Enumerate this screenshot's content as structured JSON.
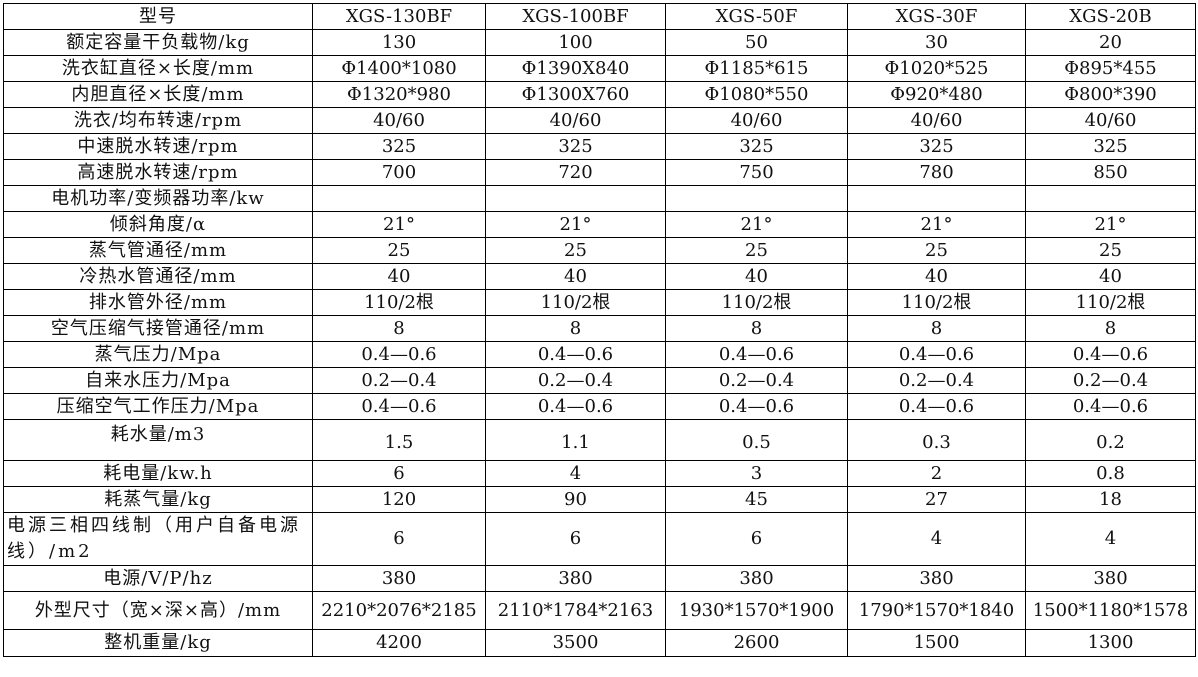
{
  "header": [
    "型号",
    "XGS-130BF",
    "XGS-100BF",
    "XGS-50F",
    "XGS-30F",
    "XGS-20B"
  ],
  "rows": [
    {
      "label": "额定容量干负载物/kg",
      "values": [
        "130",
        "100",
        "50",
        "30",
        "20"
      ]
    },
    {
      "label": "洗衣缸直径×长度/mm",
      "values": [
        "Φ1400*1080",
        "Φ1390X840",
        "Φ1185*615",
        "Φ1020*525",
        "Φ895*455"
      ]
    },
    {
      "label": "内胆直径×长度/mm",
      "values": [
        "Φ1320*980",
        "Φ1300X760",
        "Φ1080*550",
        "Φ920*480",
        "Φ800*390"
      ]
    },
    {
      "label": "洗衣/均布转速/rpm",
      "values": [
        "40/60",
        "40/60",
        "40/60",
        "40/60",
        "40/60"
      ]
    },
    {
      "label": "中速脱水转速/rpm",
      "values": [
        "325",
        "325",
        "325",
        "325",
        "325"
      ]
    },
    {
      "label": "高速脱水转速/rpm",
      "values": [
        "700",
        "720",
        "750",
        "780",
        "850"
      ]
    },
    {
      "label": "电机功率/变频器功率/kw",
      "values": [
        "",
        "",
        "",
        "",
        ""
      ]
    },
    {
      "label": "倾斜角度/α",
      "values": [
        "21°",
        "21°",
        "21°",
        "21°",
        "21°"
      ]
    },
    {
      "label": "蒸气管通径/mm",
      "values": [
        "25",
        "25",
        "25",
        "25",
        "25"
      ]
    },
    {
      "label": "冷热水管通径/mm",
      "values": [
        "40",
        "40",
        "40",
        "40",
        "40"
      ]
    },
    {
      "label": "排水管外径/mm",
      "values": [
        "110/2根",
        "110/2根",
        "110/2根",
        "110/2根",
        "110/2根"
      ]
    },
    {
      "label": "空气压缩气接管通径/mm",
      "values": [
        "8",
        "8",
        "8",
        "8",
        "8"
      ]
    },
    {
      "label": "蒸气压力/Mpa",
      "values": [
        "0.4—0.6",
        "0.4—0.6",
        "0.4—0.6",
        "0.4—0.6",
        "0.4—0.6"
      ]
    },
    {
      "label": "自来水压力/Mpa",
      "values": [
        "0.2—0.4",
        "0.2—0.4",
        "0.2—0.4",
        "0.2—0.4",
        "0.2—0.4"
      ]
    },
    {
      "label": "压缩空气工作压力/Mpa",
      "values": [
        "0.4—0.6",
        "0.4—0.6",
        "0.4—0.6",
        "0.4—0.6",
        "0.4—0.6"
      ]
    },
    {
      "label": "耗水量/m3",
      "values": [
        "1.5",
        "1.1",
        "0.5",
        "0.3",
        "0.2"
      ]
    },
    {
      "label": "耗电量/kw.h",
      "values": [
        "6",
        "4",
        "3",
        "2",
        "0.8"
      ]
    },
    {
      "label": "耗蒸气量/kg",
      "values": [
        "120",
        "90",
        "45",
        "27",
        "18"
      ]
    },
    {
      "label": "电源三相四线制（用户自备电源线）/m2",
      "values": [
        "6",
        "6",
        "6",
        "4",
        "4"
      ]
    },
    {
      "label": "电源/V/P/hz",
      "values": [
        "380",
        "380",
        "380",
        "380",
        "380"
      ]
    },
    {
      "label": "外型尺寸（宽×深×高）/mm",
      "values": [
        "2210*2076*2185",
        "2110*1784*2163",
        "1930*1570*1900",
        "1790*1570*1840",
        "1500*1180*1578"
      ]
    },
    {
      "label": "整机重量/kg",
      "values": [
        "4200",
        "3500",
        "2600",
        "1500",
        "1300"
      ]
    }
  ]
}
